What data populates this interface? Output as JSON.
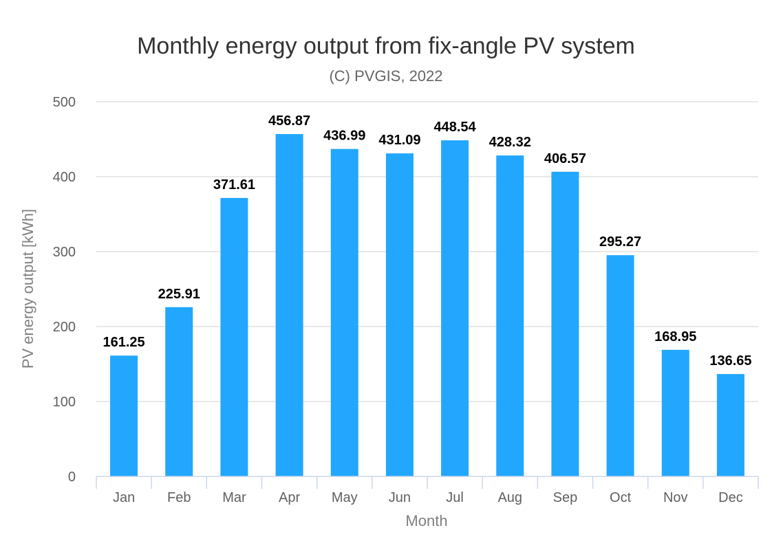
{
  "chart_data": {
    "type": "bar",
    "title": "Monthly energy output from fix-angle PV system",
    "subtitle": "(C) PVGIS, 2022",
    "xlabel": "Month",
    "ylabel": "PV energy output [kWh]",
    "categories": [
      "Jan",
      "Feb",
      "Mar",
      "Apr",
      "May",
      "Jun",
      "Jul",
      "Aug",
      "Sep",
      "Oct",
      "Nov",
      "Dec"
    ],
    "values": [
      161.25,
      225.91,
      371.61,
      456.87,
      436.99,
      431.09,
      448.54,
      428.32,
      406.57,
      295.27,
      168.95,
      136.65
    ],
    "data_labels": [
      "161.25",
      "225.91",
      "371.61",
      "456.87",
      "436.99",
      "431.09",
      "448.54",
      "428.32",
      "406.57",
      "295.27",
      "168.95",
      "136.65"
    ],
    "ylim": [
      0,
      500
    ],
    "yticks": [
      "0",
      "100",
      "200",
      "300",
      "400",
      "500"
    ],
    "bar_color": "#22a7ff",
    "grid": true,
    "legend": "none"
  }
}
